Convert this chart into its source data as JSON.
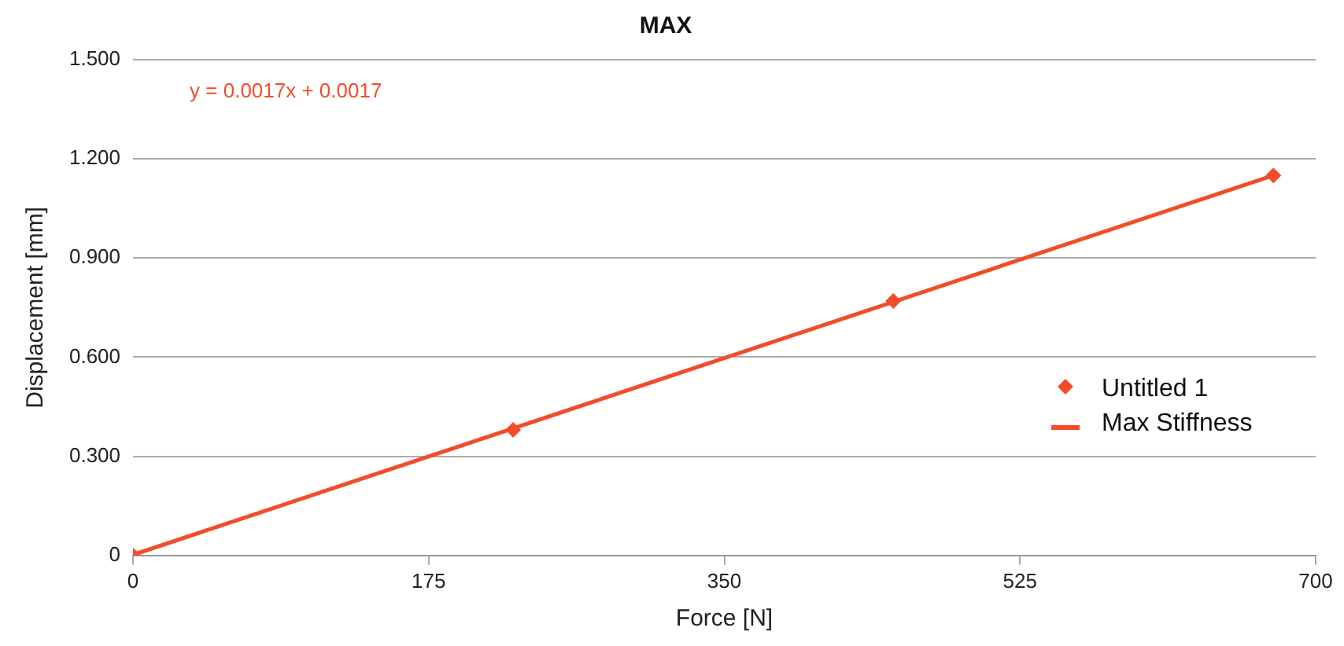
{
  "chart_data": {
    "type": "scatter",
    "title": "MAX",
    "xlabel": "Force [N]",
    "ylabel": "Displacement [mm]",
    "xlim": [
      0,
      700
    ],
    "xticks": [
      0,
      175,
      350,
      525,
      700
    ],
    "ylim": [
      0,
      1.5
    ],
    "yticks": [
      {
        "value": 0,
        "label": "0"
      },
      {
        "value": 0.3,
        "label": "0.300"
      },
      {
        "value": 0.6,
        "label": "0.600"
      },
      {
        "value": 0.9,
        "label": "0.900"
      },
      {
        "value": 1.2,
        "label": "1.200"
      },
      {
        "value": 1.5,
        "label": "1.500"
      }
    ],
    "grid": "y",
    "legend": "right",
    "annotations": [
      "y = 0.0017x + 0.0017"
    ],
    "series": [
      {
        "name": "Untitled 1",
        "color": "#f24c2a",
        "marker": "diamond",
        "x": [
          0,
          225,
          450,
          675
        ],
        "values": [
          0,
          0.38,
          0.77,
          1.15
        ]
      },
      {
        "name": "Max Stiffness",
        "type": "line",
        "color": "#f24c2a",
        "marker": "none",
        "x": [
          0,
          675
        ],
        "values": [
          0.002,
          1.15
        ]
      }
    ]
  }
}
